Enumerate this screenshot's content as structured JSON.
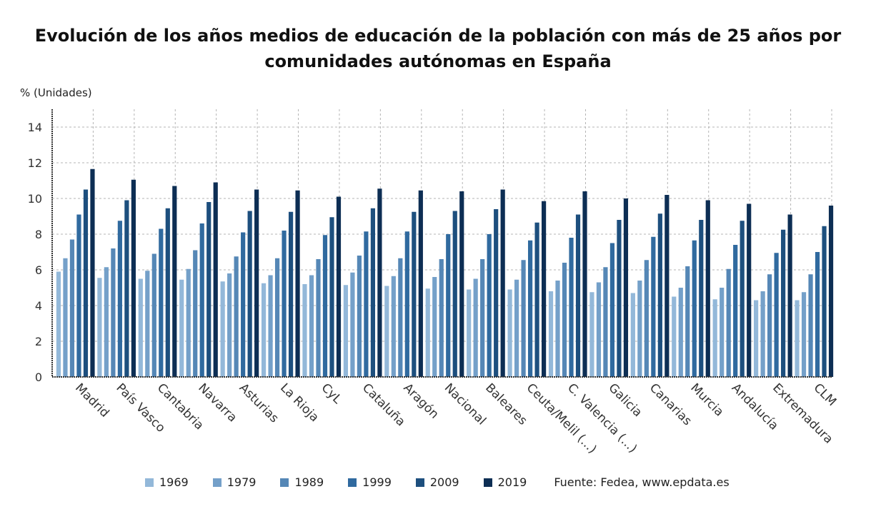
{
  "chart_data": {
    "type": "bar",
    "title": "Evolución de los años medios de educación de la población con más de 25 años por comunidades autónomas en España",
    "ylabel": "% (Unidades)",
    "xlabel": "",
    "ylim": [
      0,
      15
    ],
    "yticks": [
      0,
      2,
      4,
      6,
      8,
      10,
      12,
      14
    ],
    "grid": true,
    "legend_position": "bottom",
    "source": "Fuente: Fedea, www.epdata.es",
    "categories": [
      "Madrid",
      "País Vasco",
      "Cantabria",
      "Navarra",
      "Asturias",
      "La Rioja",
      "CyL",
      "Cataluña",
      "Aragón",
      "Nacional",
      "Baleares",
      "Ceuta/Melil (...)",
      "C. Valencia (...)",
      "Galicia",
      "Canarias",
      "Murcia",
      "Andalucía",
      "Extremadura",
      "CLM"
    ],
    "series": [
      {
        "name": "1969",
        "color": "#93b8d9",
        "values": [
          5.9,
          5.55,
          5.5,
          5.45,
          5.35,
          5.25,
          5.2,
          5.15,
          5.1,
          4.95,
          4.9,
          4.9,
          4.8,
          4.75,
          4.7,
          4.5,
          4.35,
          4.3,
          4.3
        ]
      },
      {
        "name": "1979",
        "color": "#74a0c9",
        "values": [
          6.65,
          6.15,
          5.95,
          6.05,
          5.8,
          5.7,
          5.7,
          5.85,
          5.65,
          5.6,
          5.5,
          5.45,
          5.4,
          5.3,
          5.4,
          5.0,
          5.0,
          4.8,
          4.75
        ]
      },
      {
        "name": "1989",
        "color": "#5587b6",
        "values": [
          7.7,
          7.2,
          6.9,
          7.1,
          6.75,
          6.65,
          6.6,
          6.8,
          6.65,
          6.6,
          6.6,
          6.55,
          6.4,
          6.15,
          6.55,
          6.2,
          6.05,
          5.75,
          5.75
        ]
      },
      {
        "name": "1999",
        "color": "#306a9f",
        "values": [
          9.1,
          8.75,
          8.3,
          8.6,
          8.1,
          8.2,
          7.95,
          8.15,
          8.15,
          8.0,
          8.0,
          7.65,
          7.8,
          7.5,
          7.85,
          7.65,
          7.4,
          6.95,
          7.0
        ]
      },
      {
        "name": "2009",
        "color": "#1d4f7e",
        "values": [
          10.5,
          9.9,
          9.45,
          9.8,
          9.3,
          9.25,
          8.95,
          9.45,
          9.25,
          9.3,
          9.4,
          8.65,
          9.1,
          8.8,
          9.15,
          8.8,
          8.75,
          8.25,
          8.45
        ]
      },
      {
        "name": "2019",
        "color": "#0d2e54",
        "values": [
          11.65,
          11.05,
          10.7,
          10.9,
          10.5,
          10.45,
          10.1,
          10.55,
          10.45,
          10.4,
          10.5,
          9.85,
          10.4,
          10.0,
          10.2,
          9.9,
          9.7,
          9.1,
          9.6
        ]
      }
    ]
  }
}
